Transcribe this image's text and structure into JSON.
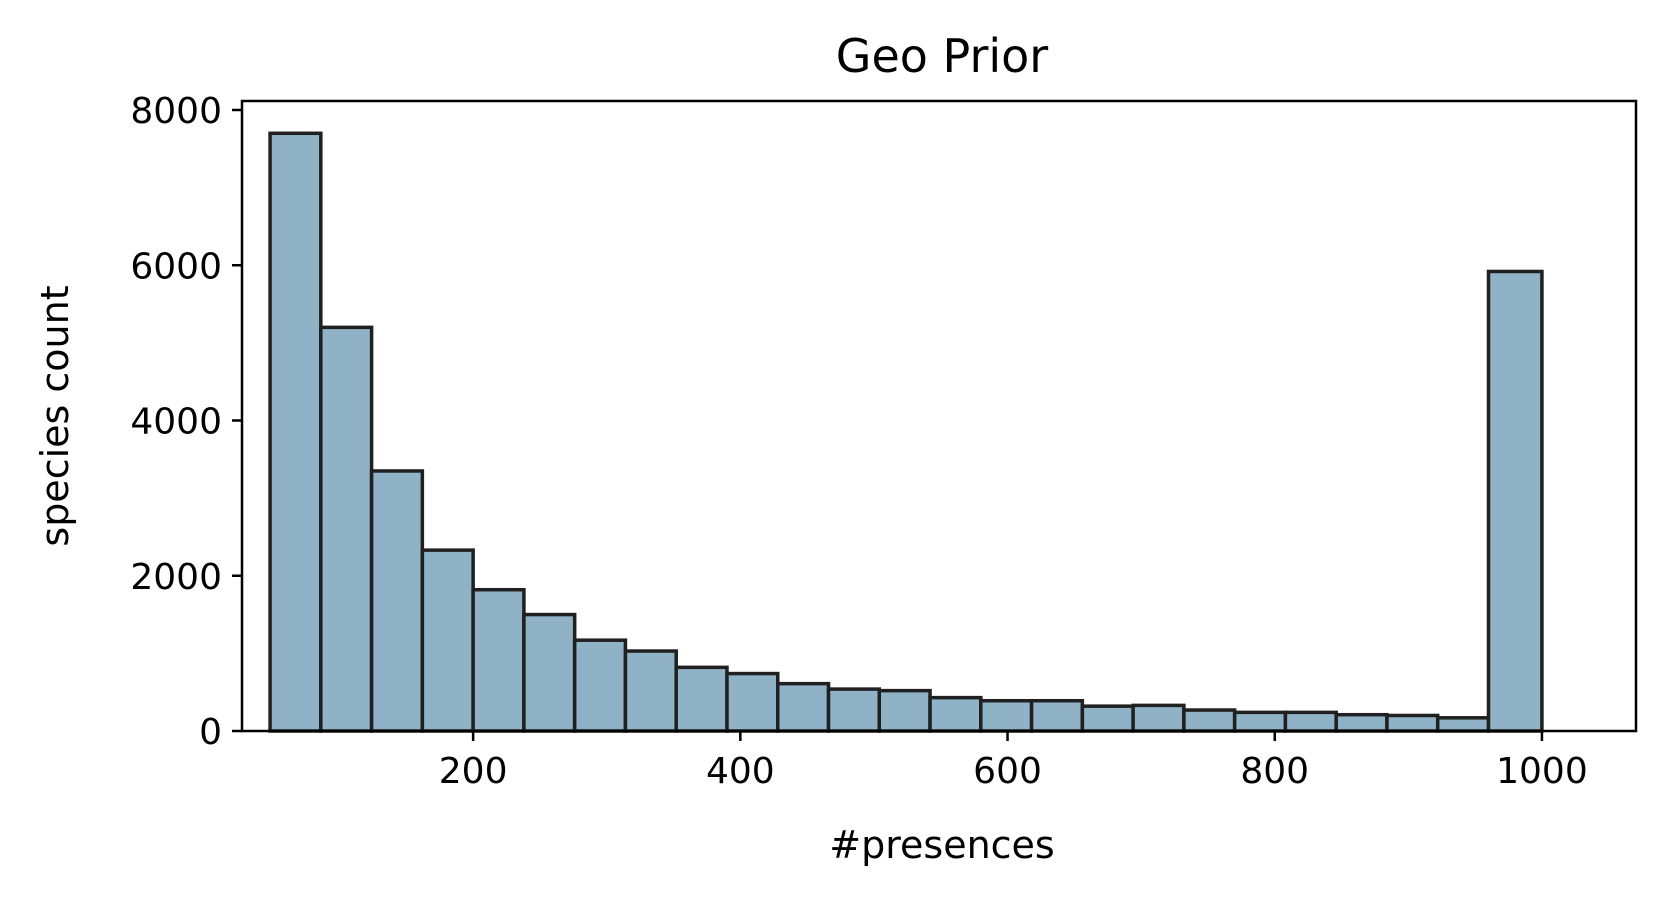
{
  "chart_data": {
    "type": "bar",
    "title": "Geo Prior",
    "xlabel": "#presences",
    "ylabel": "species count",
    "xlim": [
      0,
      1050
    ],
    "ylim": [
      0,
      8000
    ],
    "x_ticks": [
      200,
      400,
      600,
      800,
      1000
    ],
    "y_ticks": [
      0,
      2000,
      4000,
      6000,
      8000
    ],
    "grid": false,
    "bar_color": "#8fb2c6",
    "edge_color": "#202020",
    "bins": [
      {
        "x0": 48,
        "x1": 86,
        "count": 7700
      },
      {
        "x0": 86,
        "x1": 124,
        "count": 5200
      },
      {
        "x0": 124,
        "x1": 162,
        "count": 3350
      },
      {
        "x0": 162,
        "x1": 200,
        "count": 2330
      },
      {
        "x0": 200,
        "x1": 238,
        "count": 1820
      },
      {
        "x0": 238,
        "x1": 276,
        "count": 1500
      },
      {
        "x0": 276,
        "x1": 314,
        "count": 1170
      },
      {
        "x0": 314,
        "x1": 352,
        "count": 1030
      },
      {
        "x0": 352,
        "x1": 390,
        "count": 820
      },
      {
        "x0": 390,
        "x1": 428,
        "count": 740
      },
      {
        "x0": 428,
        "x1": 466,
        "count": 610
      },
      {
        "x0": 466,
        "x1": 504,
        "count": 540
      },
      {
        "x0": 504,
        "x1": 542,
        "count": 520
      },
      {
        "x0": 542,
        "x1": 580,
        "count": 430
      },
      {
        "x0": 580,
        "x1": 618,
        "count": 390
      },
      {
        "x0": 618,
        "x1": 656,
        "count": 390
      },
      {
        "x0": 656,
        "x1": 694,
        "count": 320
      },
      {
        "x0": 694,
        "x1": 732,
        "count": 330
      },
      {
        "x0": 732,
        "x1": 770,
        "count": 270
      },
      {
        "x0": 770,
        "x1": 808,
        "count": 240
      },
      {
        "x0": 808,
        "x1": 846,
        "count": 240
      },
      {
        "x0": 846,
        "x1": 884,
        "count": 210
      },
      {
        "x0": 884,
        "x1": 922,
        "count": 200
      },
      {
        "x0": 922,
        "x1": 960,
        "count": 170
      },
      {
        "x0": 960,
        "x1": 1000,
        "count": 5920
      }
    ]
  }
}
